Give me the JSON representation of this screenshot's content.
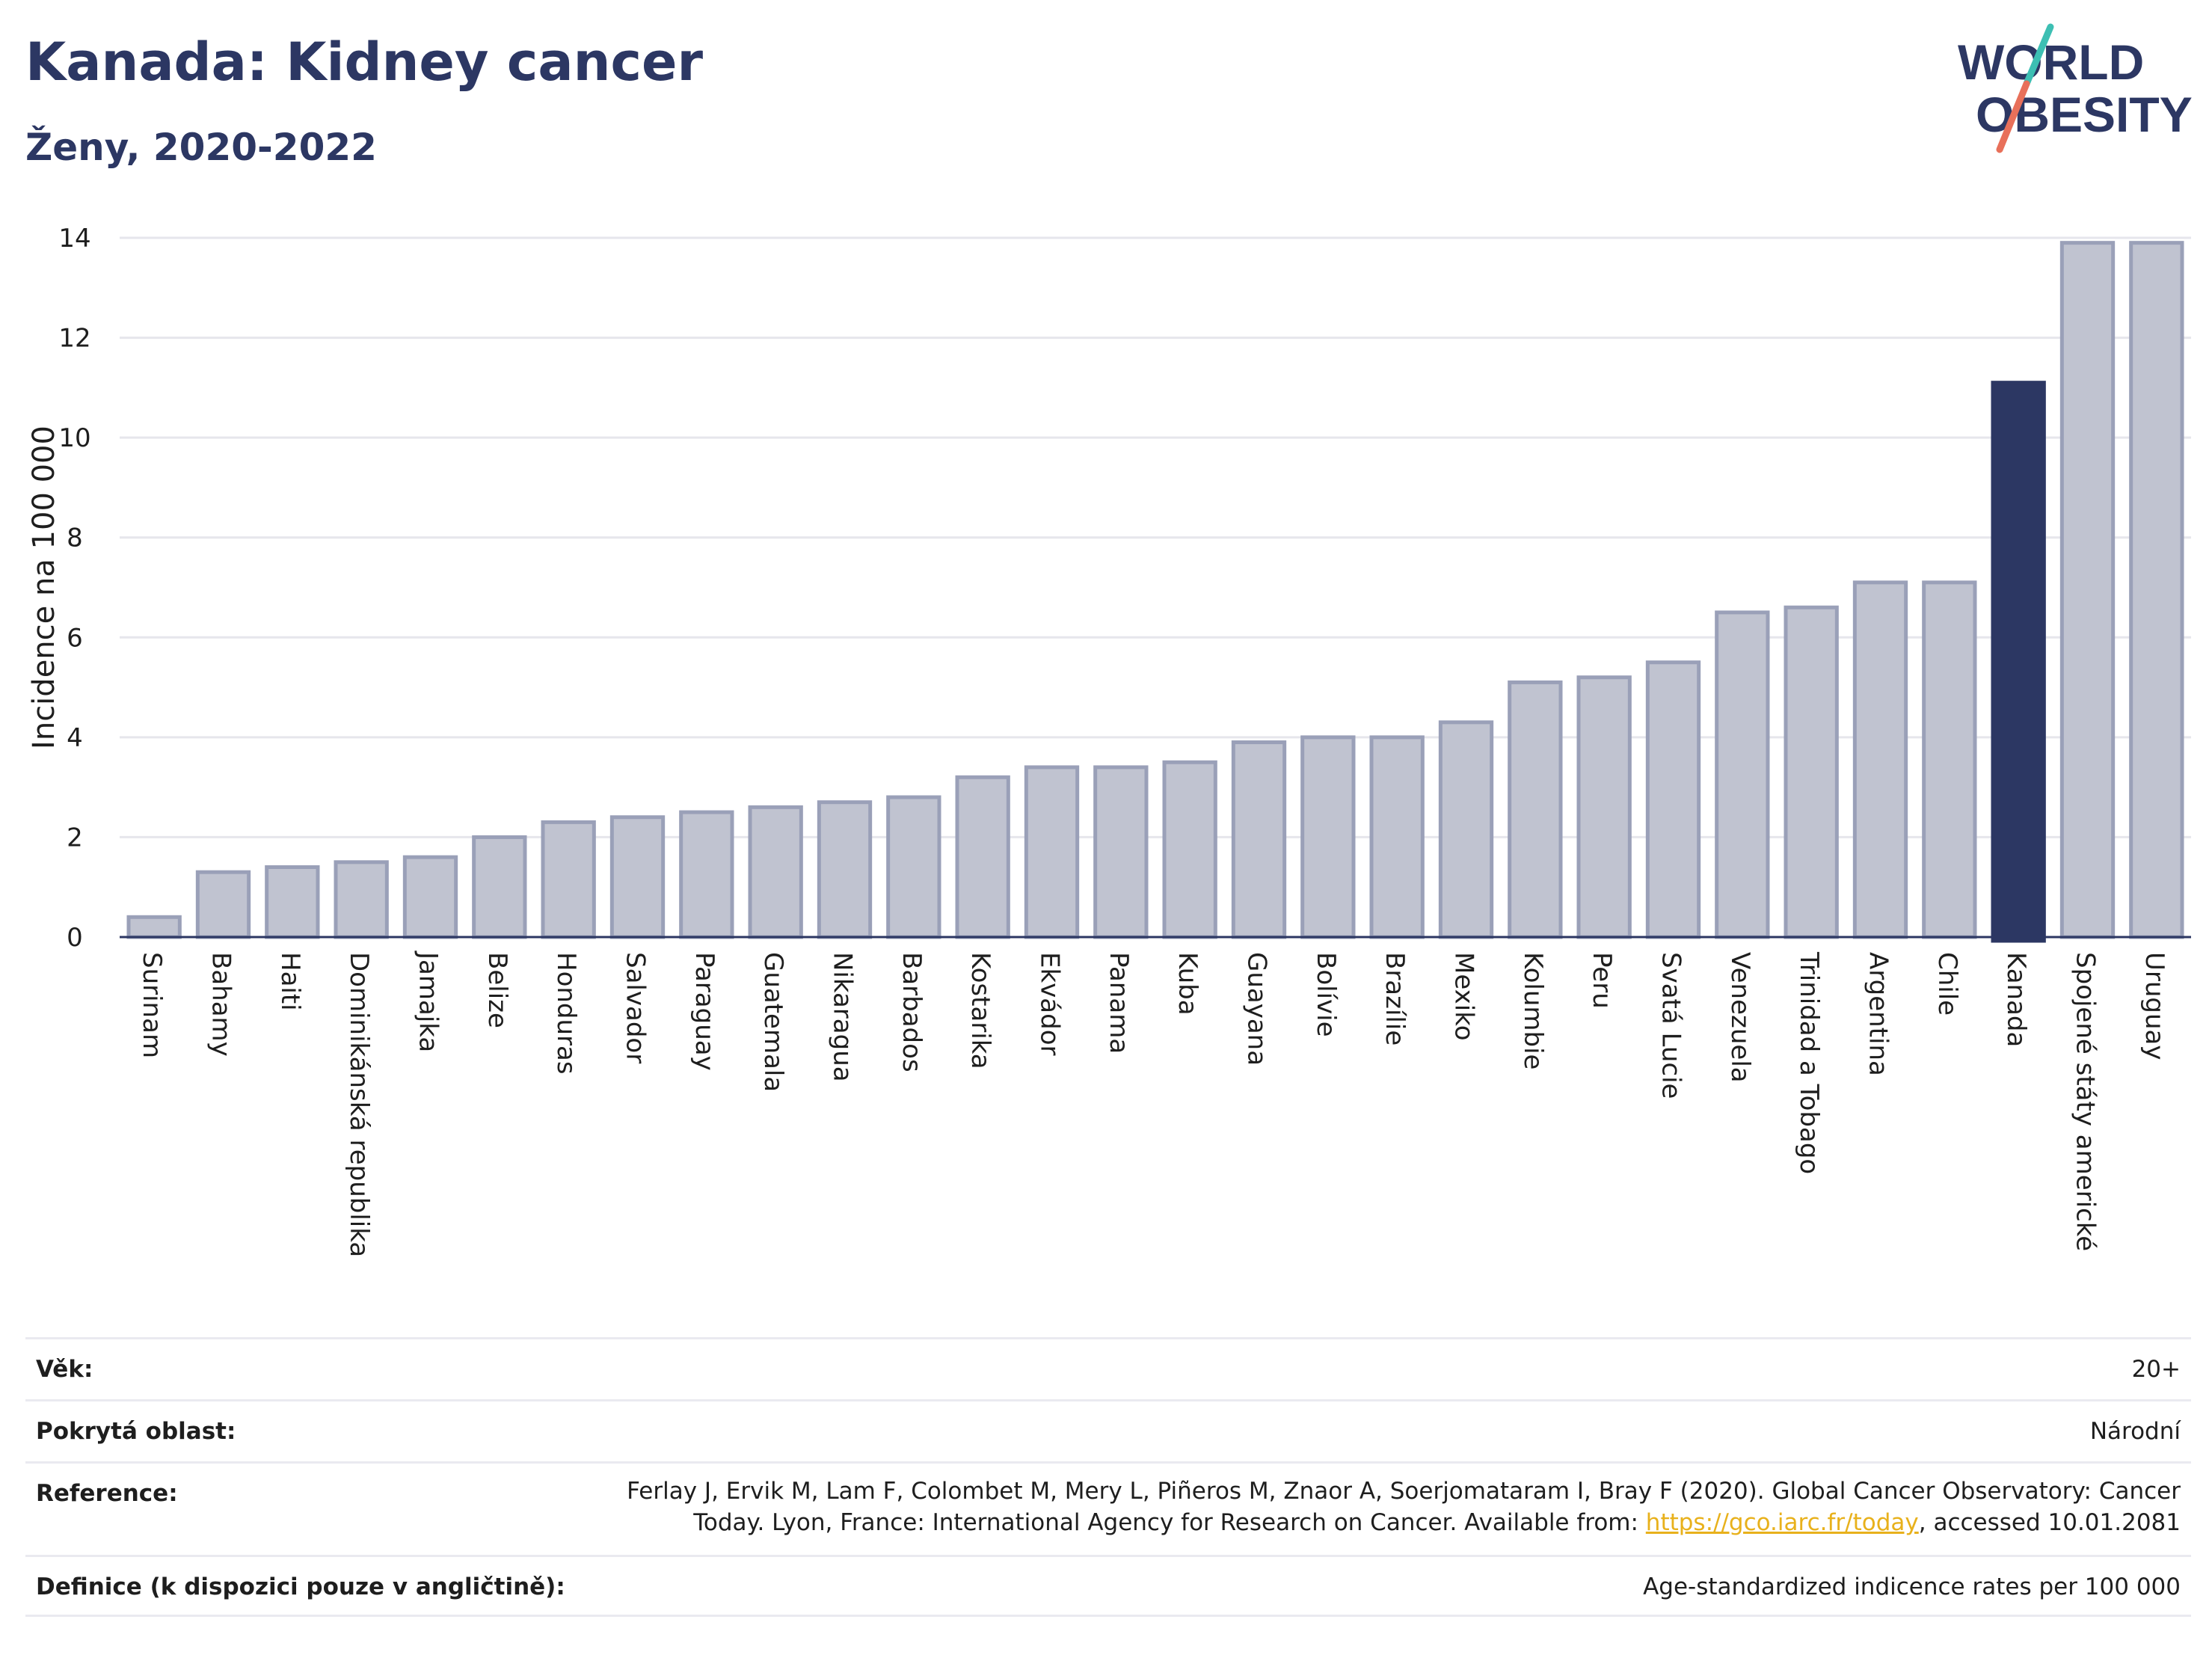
{
  "header": {
    "title": "Kanada: Kidney cancer",
    "subtitle": "Ženy, 2020-2022"
  },
  "logo": {
    "line1": "WORLD",
    "line2": "OBESITY",
    "accent_colors": [
      "#3dbfb3",
      "#e8705a"
    ]
  },
  "chart_data": {
    "type": "bar",
    "title": "Kanada: Kidney cancer",
    "subtitle": "Ženy, 2020-2022",
    "ylabel": "Incidence na 100 000",
    "ylim": [
      0,
      14
    ],
    "yticks": [
      0,
      2,
      4,
      6,
      8,
      10,
      12,
      14
    ],
    "grid": true,
    "highlight": "Kanada",
    "colors": {
      "bar": "#c0c3d0",
      "bar_edge": "#9aa0b8",
      "highlight": "#2c3763",
      "grid": "#e6e6ec",
      "axis": "#2c3763"
    },
    "categories": [
      "Surinam",
      "Bahamy",
      "Haiti",
      "Dominikánská republika",
      "Jamajka",
      "Belize",
      "Honduras",
      "Salvador",
      "Paraguay",
      "Guatemala",
      "Nikaragua",
      "Barbados",
      "Kostarika",
      "Ekvádor",
      "Panama",
      "Kuba",
      "Guayana",
      "Bolívie",
      "Brazílie",
      "Mexiko",
      "Kolumbie",
      "Peru",
      "Svatá Lucie",
      "Venezuela",
      "Trinidad a Tobago",
      "Argentina",
      "Chile",
      "Kanada",
      "Spojené státy americké",
      "Uruguay"
    ],
    "values": [
      0.4,
      1.3,
      1.4,
      1.5,
      1.6,
      2.0,
      2.3,
      2.4,
      2.5,
      2.6,
      2.7,
      2.8,
      3.2,
      3.4,
      3.4,
      3.5,
      3.9,
      4.0,
      4.0,
      4.3,
      5.1,
      5.2,
      5.5,
      6.5,
      6.6,
      7.1,
      7.1,
      11.1,
      13.9,
      13.9
    ]
  },
  "footer": {
    "age_label": "Věk:",
    "age_value": "20+",
    "coverage_label": "Pokrytá oblast:",
    "coverage_value": "Národní",
    "reference_label": "Reference:",
    "reference_line1": "Ferlay J, Ervik M, Lam F, Colombet M, Mery L, Piñeros M, Znaor A, Soerjomataram I, Bray F (2020). Global Cancer Observatory: Cancer",
    "reference_line2_pre": "Today. Lyon, France: International Agency for Research on Cancer. Available from: ",
    "reference_link": "https://gco.iarc.fr/today",
    "reference_line2_post": ", accessed 10.01.2081",
    "definition_label": "Definice (k dispozici pouze v angličtině):",
    "definition_value": "Age-standardized indicence rates per 100 000"
  }
}
